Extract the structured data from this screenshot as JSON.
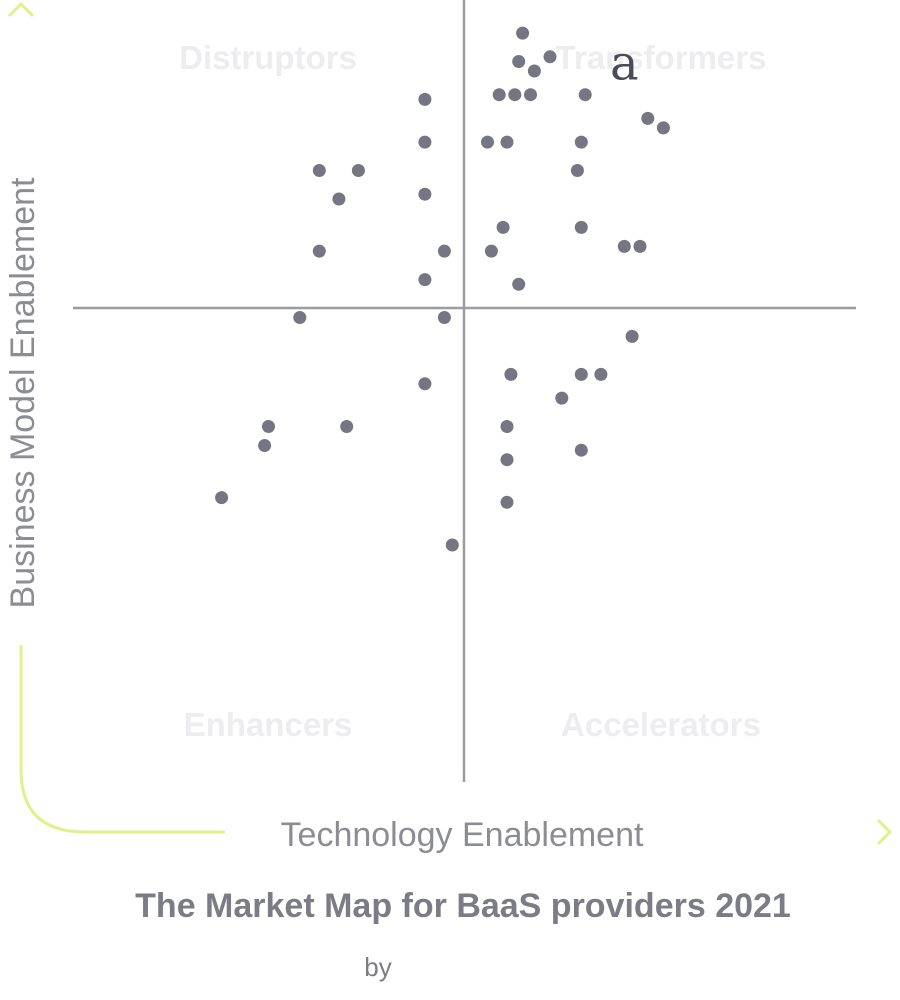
{
  "chart_data": {
    "type": "scatter",
    "title": "The Market Map for BaaS providers 2021",
    "byline": "by",
    "xlabel": "Technology Enablement",
    "ylabel": "Business Model Enablement",
    "xlim": [
      -10,
      10
    ],
    "ylim": [
      -10,
      10
    ],
    "grid": false,
    "quadrants": {
      "top_left": "Distruptors",
      "top_right": "Transformers",
      "bottom_left": "Enhancers",
      "bottom_right": "Accelerators"
    },
    "highlight": {
      "label": "a",
      "x": 4.1,
      "y": 4.5
    },
    "points": [
      {
        "x": 1.5,
        "y": 5.8
      },
      {
        "x": 1.4,
        "y": 5.2
      },
      {
        "x": 1.8,
        "y": 5.0
      },
      {
        "x": 2.2,
        "y": 5.3
      },
      {
        "x": 0.9,
        "y": 4.5
      },
      {
        "x": 1.3,
        "y": 4.5
      },
      {
        "x": 1.7,
        "y": 4.5
      },
      {
        "x": 3.1,
        "y": 4.5
      },
      {
        "x": 4.7,
        "y": 4.0
      },
      {
        "x": 5.1,
        "y": 3.8
      },
      {
        "x": -1.0,
        "y": 4.4
      },
      {
        "x": -1.0,
        "y": 3.5
      },
      {
        "x": 0.6,
        "y": 3.5
      },
      {
        "x": 1.1,
        "y": 3.5
      },
      {
        "x": 3.0,
        "y": 3.5
      },
      {
        "x": -3.7,
        "y": 2.9
      },
      {
        "x": -2.7,
        "y": 2.9
      },
      {
        "x": 2.9,
        "y": 2.9
      },
      {
        "x": -1.0,
        "y": 2.4
      },
      {
        "x": -3.2,
        "y": 2.3
      },
      {
        "x": 1.0,
        "y": 1.7
      },
      {
        "x": 3.0,
        "y": 1.7
      },
      {
        "x": -3.7,
        "y": 1.2
      },
      {
        "x": -0.5,
        "y": 1.2
      },
      {
        "x": 0.7,
        "y": 1.2
      },
      {
        "x": 4.1,
        "y": 1.3
      },
      {
        "x": 4.5,
        "y": 1.3
      },
      {
        "x": -1.0,
        "y": 0.6
      },
      {
        "x": 1.4,
        "y": 0.5
      },
      {
        "x": -4.2,
        "y": -0.2
      },
      {
        "x": -0.5,
        "y": -0.2
      },
      {
        "x": 4.3,
        "y": -0.6
      },
      {
        "x": -1.0,
        "y": -1.6
      },
      {
        "x": 1.2,
        "y": -1.4
      },
      {
        "x": 3.0,
        "y": -1.4
      },
      {
        "x": 3.5,
        "y": -1.4
      },
      {
        "x": 2.5,
        "y": -1.9
      },
      {
        "x": -5.0,
        "y": -2.5
      },
      {
        "x": -3.0,
        "y": -2.5
      },
      {
        "x": 1.1,
        "y": -2.5
      },
      {
        "x": -5.1,
        "y": -2.9
      },
      {
        "x": 3.0,
        "y": -3.0
      },
      {
        "x": 1.1,
        "y": -3.2
      },
      {
        "x": -6.2,
        "y": -4.0
      },
      {
        "x": 1.1,
        "y": -4.1
      },
      {
        "x": -0.3,
        "y": -5.0
      }
    ]
  },
  "colors": {
    "point": "#767683",
    "divider": "#9b9ba3",
    "axis_arrow": "#e3f08a",
    "quadrant_label": "#ededf0",
    "axis_title": "#8c8c95",
    "title": "#7c7c86"
  }
}
